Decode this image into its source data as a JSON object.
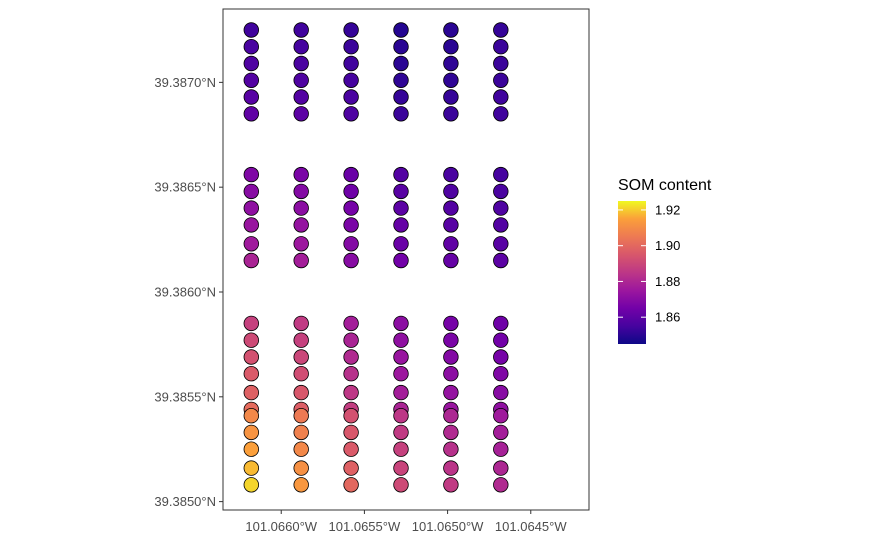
{
  "chart_data": {
    "type": "scatter",
    "title": "",
    "xlabel": "",
    "ylabel": "",
    "x_ticks": [
      {
        "value": -101.066,
        "label": "101.0660°W"
      },
      {
        "value": -101.0655,
        "label": "101.0655°W"
      },
      {
        "value": -101.065,
        "label": "101.0650°W"
      },
      {
        "value": -101.0645,
        "label": "101.0645°W"
      }
    ],
    "y_ticks": [
      {
        "value": 39.385,
        "label": "39.3850°N"
      },
      {
        "value": 39.3855,
        "label": "39.3855°N"
      },
      {
        "value": 39.386,
        "label": "39.3860°N"
      },
      {
        "value": 39.3865,
        "label": "39.3865°N"
      },
      {
        "value": 39.387,
        "label": "39.3870°N"
      }
    ],
    "xlim": [
      -101.06635,
      -101.06415
    ],
    "ylim": [
      39.38496,
      39.38735
    ],
    "grid": false,
    "legend": {
      "title": "SOM content",
      "placement": "right",
      "colorscale": "plasma",
      "range": [
        1.845,
        1.925
      ],
      "ticks": [
        {
          "value": 1.86,
          "label": "1.86"
        },
        {
          "value": 1.88,
          "label": "1.88"
        },
        {
          "value": 1.9,
          "label": "1.90"
        },
        {
          "value": 1.92,
          "label": "1.92"
        }
      ]
    },
    "columns": [
      {
        "x": -101.06618,
        "y": [
          39.38725,
          39.38717,
          39.38709,
          39.38701,
          39.38693,
          39.38685,
          39.38656,
          39.38648,
          39.3864,
          39.38632,
          39.38623,
          39.38615,
          39.38585,
          39.38577,
          39.38569,
          39.38561,
          39.38552,
          39.38544,
          39.38541,
          39.38533,
          39.38525,
          39.38516,
          39.38508
        ],
        "values": [
          1.854,
          1.856,
          1.857,
          1.858,
          1.859,
          1.861,
          1.868,
          1.87,
          1.872,
          1.874,
          1.876,
          1.879,
          1.888,
          1.891,
          1.893,
          1.896,
          1.898,
          1.901,
          1.909,
          1.912,
          1.915,
          1.918,
          1.921
        ]
      },
      {
        "x": -101.06588,
        "y": [
          39.38725,
          39.38717,
          39.38709,
          39.38701,
          39.38693,
          39.38685,
          39.38656,
          39.38648,
          39.3864,
          39.38632,
          39.38623,
          39.38615,
          39.38585,
          39.38577,
          39.38569,
          39.38561,
          39.38552,
          39.38544,
          39.38541,
          39.38533,
          39.38525,
          39.38516,
          39.38508
        ],
        "values": [
          1.854,
          1.855,
          1.856,
          1.857,
          1.858,
          1.86,
          1.867,
          1.869,
          1.871,
          1.873,
          1.875,
          1.877,
          1.886,
          1.888,
          1.89,
          1.892,
          1.895,
          1.897,
          1.905,
          1.907,
          1.909,
          1.911,
          1.913
        ]
      },
      {
        "x": -101.06558,
        "y": [
          39.38725,
          39.38717,
          39.38709,
          39.38701,
          39.38693,
          39.38685,
          39.38656,
          39.38648,
          39.3864,
          39.38632,
          39.38623,
          39.38615,
          39.38585,
          39.38577,
          39.38569,
          39.38561,
          39.38552,
          39.38544,
          39.38541,
          39.38533,
          39.38525,
          39.38516,
          39.38508
        ],
        "values": [
          1.852,
          1.853,
          1.854,
          1.855,
          1.856,
          1.857,
          1.863,
          1.864,
          1.866,
          1.867,
          1.869,
          1.87,
          1.877,
          1.879,
          1.881,
          1.883,
          1.885,
          1.887,
          1.893,
          1.895,
          1.896,
          1.898,
          1.9
        ]
      },
      {
        "x": -101.06528,
        "y": [
          39.38725,
          39.38717,
          39.38709,
          39.38701,
          39.38693,
          39.38685,
          39.38656,
          39.38648,
          39.3864,
          39.38632,
          39.38623,
          39.38615,
          39.38585,
          39.38577,
          39.38569,
          39.38561,
          39.38552,
          39.38544,
          39.38541,
          39.38533,
          39.38525,
          39.38516,
          39.38508
        ],
        "values": [
          1.849,
          1.85,
          1.85,
          1.851,
          1.852,
          1.853,
          1.858,
          1.859,
          1.86,
          1.862,
          1.863,
          1.865,
          1.871,
          1.872,
          1.874,
          1.875,
          1.877,
          1.879,
          1.885,
          1.886,
          1.888,
          1.889,
          1.891
        ]
      },
      {
        "x": -101.06498,
        "y": [
          39.38725,
          39.38717,
          39.38709,
          39.38701,
          39.38693,
          39.38685,
          39.38656,
          39.38648,
          39.3864,
          39.38632,
          39.38623,
          39.38615,
          39.38585,
          39.38577,
          39.38569,
          39.38561,
          39.38552,
          39.38544,
          39.38541,
          39.38533,
          39.38525,
          39.38516,
          39.38508
        ],
        "values": [
          1.85,
          1.85,
          1.851,
          1.851,
          1.852,
          1.853,
          1.856,
          1.857,
          1.858,
          1.859,
          1.861,
          1.862,
          1.866,
          1.867,
          1.869,
          1.871,
          1.873,
          1.874,
          1.88,
          1.881,
          1.883,
          1.884,
          1.886
        ]
      },
      {
        "x": -101.06468,
        "y": [
          39.38725,
          39.38717,
          39.38709,
          39.38701,
          39.38693,
          39.38685,
          39.38656,
          39.38648,
          39.3864,
          39.38632,
          39.38623,
          39.38615,
          39.38585,
          39.38577,
          39.38569,
          39.38561,
          39.38552,
          39.38544,
          39.38541,
          39.38533,
          39.38525,
          39.38516,
          39.38508
        ],
        "values": [
          1.852,
          1.853,
          1.853,
          1.853,
          1.854,
          1.854,
          1.855,
          1.856,
          1.857,
          1.858,
          1.859,
          1.86,
          1.864,
          1.865,
          1.866,
          1.868,
          1.87,
          1.872,
          1.876,
          1.877,
          1.878,
          1.88,
          1.881
        ]
      }
    ]
  }
}
